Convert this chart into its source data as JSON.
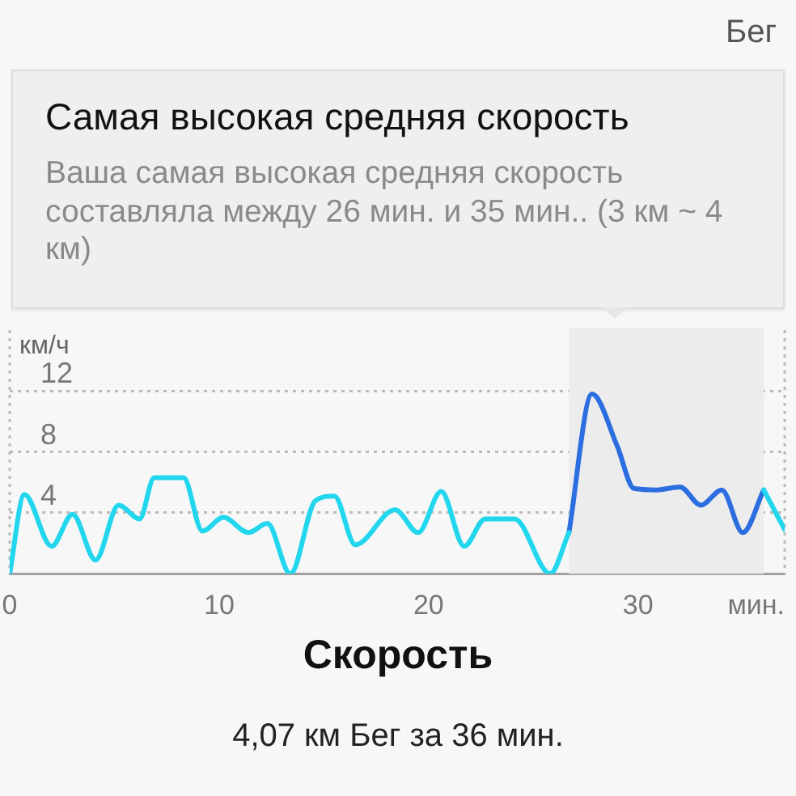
{
  "chart_data": {
    "type": "line",
    "title": "Скорость",
    "subtitle": "4,07 км Бег за 36 мин.",
    "xlabel": "мин.",
    "ylabel": "км/ч",
    "annotations": [
      "Бег",
      "Самая высокая средняя скорость",
      "Ваша самая высокая средняя скорость составляла между 26 мин. и 35 мин.. (3 км ~ 4 км)"
    ],
    "x": [
      0,
      0.7,
      2.0,
      3.0,
      4.1,
      5.2,
      6.2,
      6.9,
      8.3,
      9.2,
      10.2,
      11.4,
      12.3,
      13.4,
      14.6,
      15.5,
      16.5,
      18.4,
      19.5,
      20.6,
      21.7,
      22.7,
      24.1,
      25.8,
      26.7,
      27.8,
      29.0,
      29.8,
      30.9,
      32.0,
      33.0,
      34.0,
      35.0,
      36.0,
      37.0
    ],
    "series": [
      {
        "color": "#22d6ee",
        "values": [
          0,
          5.2,
          1.8,
          3.9,
          0.9,
          4.5,
          3.6,
          6.3,
          6.3,
          2.8,
          3.7,
          2.7,
          3.3,
          0,
          4.8,
          5.1,
          1.9,
          4.2,
          2.7,
          5.4,
          1.8,
          3.6,
          3.6,
          0,
          2.7,
          null,
          null,
          null,
          null,
          null,
          null,
          null,
          null,
          5.5,
          2.9
        ]
      },
      {
        "color": "#2c6ee0",
        "values": [
          null,
          null,
          null,
          null,
          null,
          null,
          null,
          null,
          null,
          null,
          null,
          null,
          null,
          null,
          null,
          null,
          null,
          null,
          null,
          null,
          null,
          null,
          null,
          null,
          2.7,
          11.8,
          8.4,
          5.6,
          5.5,
          5.7,
          4.5,
          5.5,
          2.7,
          5.5,
          null
        ]
      }
    ],
    "xlim": [
      0,
      37
    ],
    "xticks": [
      0,
      10,
      20,
      30
    ],
    "ylim": [
      0,
      16
    ],
    "yticks": [
      4,
      8,
      12
    ],
    "bands": [
      {
        "axis": "x",
        "from": 26.7,
        "to": 36.0,
        "color": "#ececec"
      }
    ],
    "grid": "y"
  }
}
